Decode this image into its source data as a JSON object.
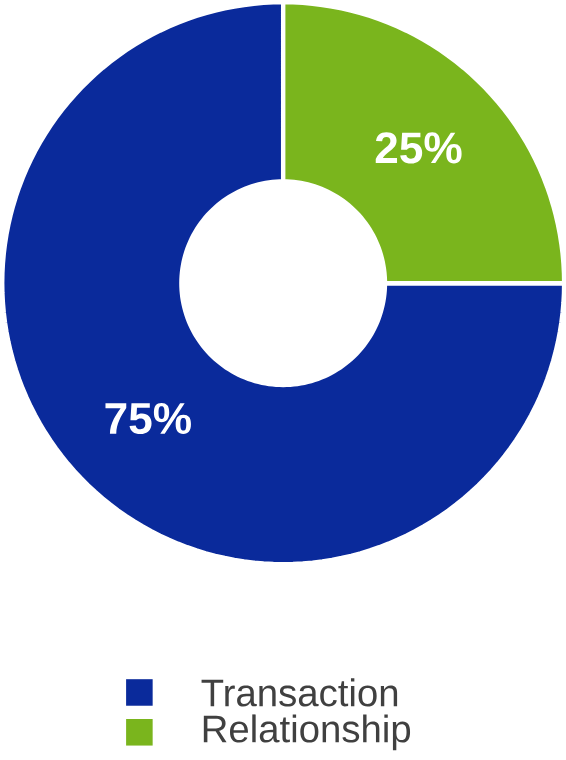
{
  "chart_data": {
    "type": "donut",
    "categories": [
      "Transaction",
      "Relationship"
    ],
    "values": [
      75,
      25
    ],
    "colors": [
      "#0a2a9b",
      "#7ab51d"
    ],
    "value_labels": [
      "75%",
      "25%"
    ],
    "legend": "bottom"
  }
}
